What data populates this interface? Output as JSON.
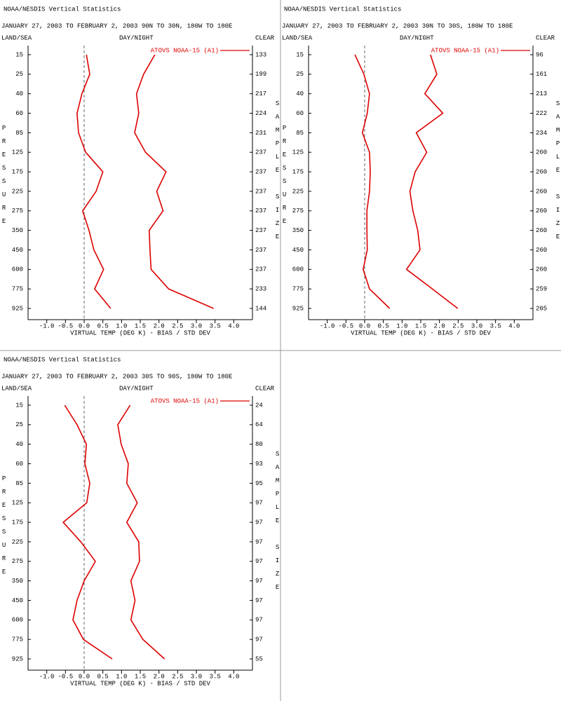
{
  "chart_data": [
    {
      "type": "line",
      "title": "NOAA/NESDIS Vertical Statistics",
      "subtitle": "JANUARY 27, 2003 TO FEBRUARY 2, 2003 90N TO 30N, 180W TO 180E",
      "land_sea_label": "LAND/SEA",
      "day_night_label": "DAY/NIGHT",
      "clear_label": "CLEAR",
      "ylabel": "PRESSURE",
      "y2label": "SAMPLE SIZE",
      "xlabel": "VIRTUAL TEMP (DEG K) - BIAS / STD DEV",
      "categories": [
        15,
        25,
        40,
        60,
        85,
        125,
        175,
        225,
        275,
        350,
        450,
        600,
        775,
        925
      ],
      "sample_size": [
        133,
        199,
        217,
        224,
        231,
        237,
        237,
        237,
        237,
        237,
        237,
        237,
        233,
        144
      ],
      "series": [
        {
          "name": "ATOVS NOAA-15 (A1)",
          "color": "#dd0000",
          "bias": [
            0.06,
            0.15,
            -0.06,
            -0.19,
            -0.15,
            0.04,
            0.5,
            0.32,
            -0.04,
            0.13,
            0.26,
            0.52,
            0.28,
            0.71
          ],
          "std_dev": [
            1.89,
            1.59,
            1.4,
            1.46,
            1.35,
            1.64,
            2.19,
            1.94,
            2.11,
            1.74,
            1.76,
            1.79,
            2.26,
            3.46
          ]
        }
      ],
      "xlim": [
        -1.5,
        4.5
      ],
      "xticks": [
        {
          "value": -1,
          "label": "-1.0"
        },
        -0.5,
        {
          "value": 0,
          "label": "0.0"
        },
        0.5,
        {
          "value": 1,
          "label": "1.0"
        },
        1.5,
        {
          "value": 2,
          "label": "2.0"
        },
        2.5,
        {
          "value": 3,
          "label": "3.0"
        },
        3.5,
        {
          "value": 4,
          "label": "4.0"
        }
      ],
      "reference_line": 0
    },
    {
      "type": "line",
      "title": "NOAA/NESDIS Vertical Statistics",
      "subtitle": "JANUARY 27, 2003 TO FEBRUARY 2, 2003 30N TO 30S, 180W TO 180E",
      "land_sea_label": "LAND/SEA",
      "day_night_label": "DAY/NIGHT",
      "clear_label": "CLEAR",
      "ylabel": "PRESSURE",
      "y2label": "SAMPLE SIZE",
      "xlabel": "VIRTUAL TEMP (DEG K) - BIAS / STD DEV",
      "categories": [
        15,
        25,
        40,
        60,
        85,
        125,
        175,
        225,
        275,
        350,
        450,
        600,
        775,
        925
      ],
      "sample_size": [
        96,
        161,
        213,
        222,
        234,
        260,
        260,
        260,
        260,
        260,
        260,
        260,
        259,
        205
      ],
      "series": [
        {
          "name": "ATOVS NOAA-15 (A1)",
          "color": "#dd0000",
          "bias": [
            -0.26,
            -0.02,
            0.13,
            0.07,
            -0.06,
            0.13,
            0.15,
            0.13,
            0.06,
            0.06,
            0.07,
            -0.04,
            0.13,
            0.67
          ],
          "std_dev": [
            1.76,
            1.93,
            1.61,
            2.09,
            1.38,
            1.66,
            1.35,
            1.21,
            1.29,
            1.42,
            1.48,
            1.12,
            1.81,
            2.49
          ]
        }
      ],
      "xlim": [
        -1.5,
        4.5
      ],
      "xticks": [
        {
          "value": -1,
          "label": "-1.0"
        },
        -0.5,
        {
          "value": 0,
          "label": "0.0"
        },
        0.5,
        {
          "value": 1,
          "label": "1.0"
        },
        1.5,
        {
          "value": 2,
          "label": "2.0"
        },
        2.5,
        {
          "value": 3,
          "label": "3.0"
        },
        3.5,
        {
          "value": 4,
          "label": "4.0"
        }
      ],
      "reference_line": 0
    },
    {
      "type": "line",
      "title": "NOAA/NESDIS Vertical Statistics",
      "subtitle": "JANUARY 27, 2003 TO FEBRUARY 2, 2003 30S TO 90S, 180W TO 180E",
      "land_sea_label": "LAND/SEA",
      "day_night_label": "DAY/NIGHT",
      "clear_label": "CLEAR",
      "ylabel": "PRESSURE",
      "y2label": "SAMPLE SIZE",
      "xlabel": "VIRTUAL TEMP (DEG K) - BIAS / STD DEV",
      "categories": [
        15,
        25,
        40,
        60,
        85,
        125,
        175,
        225,
        275,
        350,
        450,
        600,
        775,
        925
      ],
      "sample_size": [
        24,
        64,
        80,
        93,
        95,
        97,
        97,
        97,
        97,
        97,
        97,
        97,
        97,
        55
      ],
      "series": [
        {
          "name": "ATOVS NOAA-15 (A1)",
          "color": "#dd0000",
          "bias": [
            -0.52,
            -0.19,
            0.06,
            0.02,
            0.15,
            0.07,
            -0.56,
            -0.09,
            0.3,
            0,
            -0.19,
            -0.3,
            -0.02,
            0.75
          ],
          "std_dev": [
            1.23,
            0.9,
            0.99,
            1.18,
            1.14,
            1.42,
            1.14,
            1.46,
            1.48,
            1.25,
            1.36,
            1.25,
            1.57,
            2.15
          ]
        }
      ],
      "xlim": [
        -1.5,
        4.5
      ],
      "xticks": [
        {
          "value": -1,
          "label": "-1.0"
        },
        -0.5,
        {
          "value": 0,
          "label": "0.0"
        },
        0.5,
        {
          "value": 1,
          "label": "1.0"
        },
        1.5,
        {
          "value": 2,
          "label": "2.0"
        },
        2.5,
        {
          "value": 3,
          "label": "3.0"
        },
        3.5,
        {
          "value": 4,
          "label": "4.0"
        }
      ],
      "reference_line": 0
    }
  ]
}
